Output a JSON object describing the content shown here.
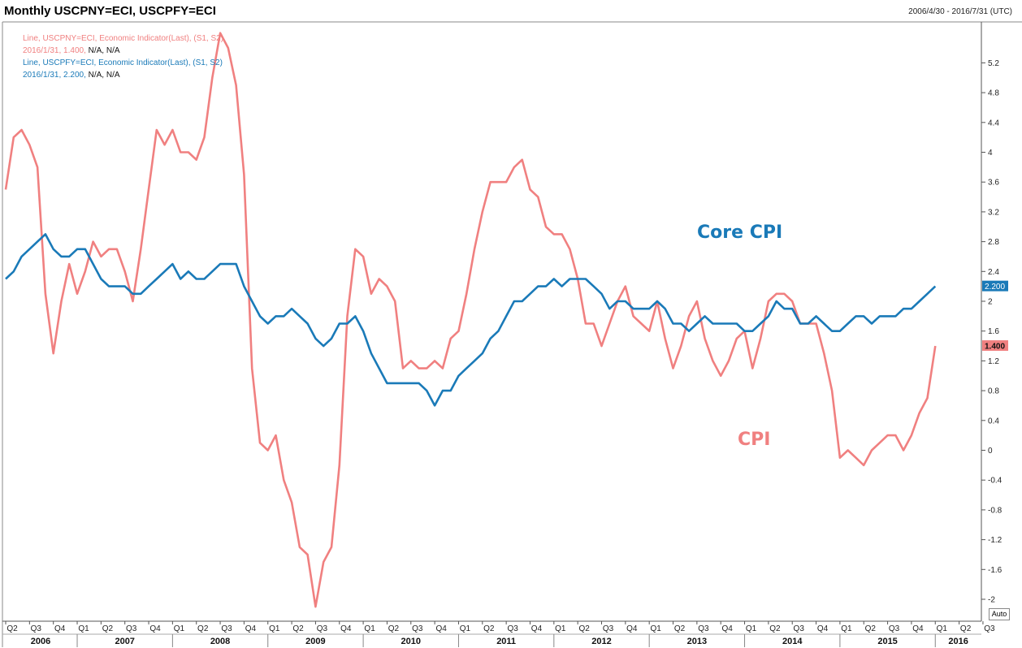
{
  "header": {
    "title": "Monthly USCPNY=ECI, USCPFY=ECI",
    "range": "2006/4/30 - 2016/7/31 (UTC)"
  },
  "legend": {
    "cpi_line": "Line, USCPNY=ECI, Economic Indicator(Last), (S1, S2)",
    "cpi_value": "2016/1/31, 1.400, ",
    "cpi_na": "N/A, N/A",
    "core_line": "Line, USCPFY=ECI, Economic Indicator(Last), (S1, S2)",
    "core_value": "2016/1/31, 2.200, ",
    "core_na": "N/A, N/A"
  },
  "auto_button": "Auto",
  "chart_data": {
    "type": "line",
    "x_start": "2006-04",
    "x_frequency": "monthly",
    "x_range": [
      "2006-04",
      "2016-09"
    ],
    "ylim": [
      -2.3,
      5.6
    ],
    "yticks": [
      "-2",
      "-1.6",
      "-1.2",
      "-0.8",
      "-0.4",
      "0",
      "0.4",
      "0.8",
      "1.2",
      "1.6",
      "2",
      "2.4",
      "2.8",
      "3.2",
      "3.6",
      "4",
      "4.4",
      "4.8",
      "5.2"
    ],
    "grid": false,
    "quarter_labels": [
      "Q2",
      "Q3",
      "Q4",
      "Q1",
      "Q2",
      "Q3",
      "Q4",
      "Q1",
      "Q2",
      "Q3",
      "Q4",
      "Q1",
      "Q2",
      "Q3",
      "Q4",
      "Q1",
      "Q2",
      "Q3",
      "Q4",
      "Q1",
      "Q2",
      "Q3",
      "Q4",
      "Q1",
      "Q2",
      "Q3",
      "Q4",
      "Q1",
      "Q2",
      "Q3",
      "Q4",
      "Q1",
      "Q2",
      "Q3",
      "Q4",
      "Q1",
      "Q2",
      "Q3",
      "Q4",
      "Q1",
      "Q2",
      "Q3"
    ],
    "year_labels": [
      "2006",
      "2007",
      "2008",
      "2009",
      "2010",
      "2011",
      "2012",
      "2013",
      "2014",
      "2015",
      "2016"
    ],
    "annotations": [
      "Core CPI",
      "CPI"
    ],
    "series": [
      {
        "name": "CPI",
        "color": "#f08080",
        "last_label": "1.400",
        "values": [
          3.5,
          4.2,
          4.3,
          4.1,
          3.8,
          2.1,
          1.3,
          2.0,
          2.5,
          2.1,
          2.4,
          2.8,
          2.6,
          2.7,
          2.7,
          2.4,
          2.0,
          2.7,
          3.5,
          4.3,
          4.1,
          4.3,
          4.0,
          4.0,
          3.9,
          4.2,
          5.0,
          5.6,
          5.4,
          4.9,
          3.7,
          1.1,
          0.1,
          0.0,
          0.2,
          -0.4,
          -0.7,
          -1.3,
          -1.4,
          -2.1,
          -1.5,
          -1.3,
          -0.2,
          1.8,
          2.7,
          2.6,
          2.1,
          2.3,
          2.2,
          2.0,
          1.1,
          1.2,
          1.1,
          1.1,
          1.2,
          1.1,
          1.5,
          1.6,
          2.1,
          2.7,
          3.2,
          3.6,
          3.6,
          3.6,
          3.8,
          3.9,
          3.5,
          3.4,
          3.0,
          2.9,
          2.9,
          2.7,
          2.3,
          1.7,
          1.7,
          1.4,
          1.7,
          2.0,
          2.2,
          1.8,
          1.7,
          1.6,
          2.0,
          1.5,
          1.1,
          1.4,
          1.8,
          2.0,
          1.5,
          1.2,
          1.0,
          1.2,
          1.5,
          1.6,
          1.1,
          1.5,
          2.0,
          2.1,
          2.1,
          2.0,
          1.7,
          1.7,
          1.7,
          1.3,
          0.8,
          -0.1,
          0.0,
          -0.1,
          -0.2,
          0.0,
          0.1,
          0.2,
          0.2,
          0.0,
          0.2,
          0.5,
          0.7,
          1.4
        ]
      },
      {
        "name": "Core CPI",
        "color": "#1a7ab8",
        "last_label": "2.200",
        "values": [
          2.3,
          2.4,
          2.6,
          2.7,
          2.8,
          2.9,
          2.7,
          2.6,
          2.6,
          2.7,
          2.7,
          2.5,
          2.3,
          2.2,
          2.2,
          2.2,
          2.1,
          2.1,
          2.2,
          2.3,
          2.4,
          2.5,
          2.3,
          2.4,
          2.3,
          2.3,
          2.4,
          2.5,
          2.5,
          2.5,
          2.2,
          2.0,
          1.8,
          1.7,
          1.8,
          1.8,
          1.9,
          1.8,
          1.7,
          1.5,
          1.4,
          1.5,
          1.7,
          1.7,
          1.8,
          1.6,
          1.3,
          1.1,
          0.9,
          0.9,
          0.9,
          0.9,
          0.9,
          0.8,
          0.6,
          0.8,
          0.8,
          1.0,
          1.1,
          1.2,
          1.3,
          1.5,
          1.6,
          1.8,
          2.0,
          2.0,
          2.1,
          2.2,
          2.2,
          2.3,
          2.2,
          2.3,
          2.3,
          2.3,
          2.2,
          2.1,
          1.9,
          2.0,
          2.0,
          1.9,
          1.9,
          1.9,
          2.0,
          1.9,
          1.7,
          1.7,
          1.6,
          1.7,
          1.8,
          1.7,
          1.7,
          1.7,
          1.7,
          1.6,
          1.6,
          1.7,
          1.8,
          2.0,
          1.9,
          1.9,
          1.7,
          1.7,
          1.8,
          1.7,
          1.6,
          1.6,
          1.7,
          1.8,
          1.8,
          1.7,
          1.8,
          1.8,
          1.8,
          1.9,
          1.9,
          2.0,
          2.1,
          2.2
        ]
      }
    ]
  }
}
